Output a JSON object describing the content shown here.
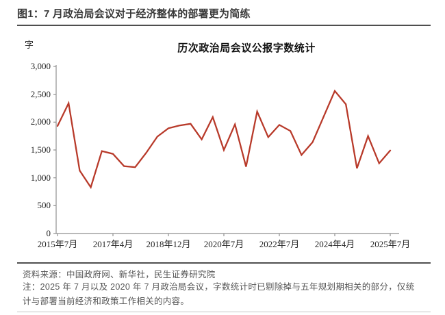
{
  "figure": {
    "header_title": "图1：7 月政治局会议对于经济整体的部署更为简练",
    "unit_label": "字",
    "chart_title": "历次政治局会议公报字数统计"
  },
  "footer": {
    "source": "资料来源：中国政府网、新华社，民生证券研究院",
    "note": "注：2025 年 7 月以及 2020 年 7 月政治局会议，字数统计时已剔除掉与五年规划期相关的部分，仅统计与部署当前经济和政策工作相关的内容。"
  },
  "colors": {
    "line": "#B83A2A",
    "axis": "#8f8f8f",
    "header_text": "#383838",
    "divider": "#4f4f4f",
    "footer_text": "#555555"
  },
  "chart_data": {
    "type": "line",
    "title": "历次政治局会议公报字数统计",
    "xlabel": "",
    "ylabel": "字",
    "ylim": [
      0,
      3000
    ],
    "grid": false,
    "legend": "none",
    "ytick_values": [
      0,
      500,
      1000,
      1500,
      2000,
      2500,
      3000
    ],
    "ytick_labels": [
      "0",
      "500",
      "1,000",
      "1,500",
      "2,000",
      "2,500",
      "3,000"
    ],
    "xtick_labels": [
      "2015年7月",
      "2017年4月",
      "2018年12月",
      "2020年7月",
      "2022年7月",
      "2024年4月",
      "2025年7月"
    ],
    "xtick_indices": [
      0,
      5,
      10,
      15,
      20,
      25,
      30
    ],
    "series": [
      {
        "name": "政治局会议公报字数",
        "values": [
          1930,
          2340,
          1130,
          830,
          1480,
          1430,
          1210,
          1190,
          1450,
          1740,
          1890,
          1940,
          1970,
          1690,
          2090,
          1500,
          1960,
          1200,
          2190,
          1730,
          1950,
          1840,
          1410,
          1640,
          2100,
          2560,
          2320,
          1170,
          1750,
          1260,
          1490
        ]
      }
    ]
  }
}
